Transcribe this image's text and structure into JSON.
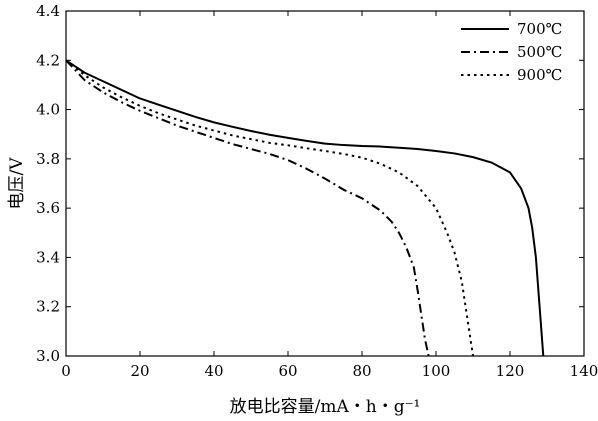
{
  "chart_data": {
    "type": "line",
    "xlabel": "放电比容量/mA・h・g⁻¹",
    "ylabel": "电压/V",
    "xlim": [
      0,
      140
    ],
    "ylim": [
      3.0,
      4.4
    ],
    "xticks": [
      0,
      20,
      40,
      60,
      80,
      100,
      120,
      140
    ],
    "yticks": [
      3.0,
      3.2,
      3.4,
      3.6,
      3.8,
      4.0,
      4.2,
      4.4
    ],
    "grid": false,
    "legend_position": "top-right",
    "series": [
      {
        "name": "700℃",
        "style": "solid",
        "color": "#000000",
        "x": [
          0,
          5,
          10,
          15,
          20,
          25,
          30,
          35,
          40,
          45,
          50,
          55,
          60,
          65,
          70,
          75,
          80,
          85,
          90,
          95,
          100,
          105,
          110,
          115,
          120,
          123,
          125,
          126,
          127,
          127.5,
          128,
          128.4,
          128.8,
          129
        ],
        "y": [
          4.2,
          4.15,
          4.115,
          4.08,
          4.045,
          4.02,
          3.995,
          3.97,
          3.948,
          3.93,
          3.913,
          3.898,
          3.885,
          3.873,
          3.862,
          3.856,
          3.852,
          3.85,
          3.845,
          3.84,
          3.832,
          3.822,
          3.807,
          3.785,
          3.745,
          3.68,
          3.6,
          3.52,
          3.4,
          3.3,
          3.2,
          3.12,
          3.04,
          3.0
        ]
      },
      {
        "name": "500℃",
        "style": "dashdot",
        "color": "#000000",
        "x": [
          0,
          5,
          10,
          15,
          20,
          25,
          30,
          35,
          40,
          45,
          50,
          55,
          60,
          65,
          70,
          75,
          80,
          85,
          88,
          90,
          92,
          94,
          95,
          96,
          97,
          98
        ],
        "y": [
          4.2,
          4.12,
          4.07,
          4.03,
          3.995,
          3.965,
          3.935,
          3.91,
          3.885,
          3.86,
          3.84,
          3.82,
          3.795,
          3.76,
          3.72,
          3.675,
          3.64,
          3.59,
          3.545,
          3.5,
          3.44,
          3.36,
          3.27,
          3.17,
          3.07,
          3.0
        ]
      },
      {
        "name": "900℃",
        "style": "dotted",
        "color": "#000000",
        "x": [
          0,
          5,
          10,
          15,
          20,
          25,
          30,
          35,
          40,
          45,
          50,
          55,
          60,
          65,
          70,
          75,
          80,
          85,
          90,
          95,
          100,
          103,
          105,
          107,
          108,
          109,
          110
        ],
        "y": [
          4.2,
          4.14,
          4.09,
          4.05,
          4.015,
          3.985,
          3.96,
          3.935,
          3.915,
          3.895,
          3.88,
          3.865,
          3.855,
          3.843,
          3.832,
          3.82,
          3.805,
          3.78,
          3.745,
          3.69,
          3.6,
          3.5,
          3.42,
          3.3,
          3.2,
          3.1,
          3.0
        ]
      }
    ]
  }
}
